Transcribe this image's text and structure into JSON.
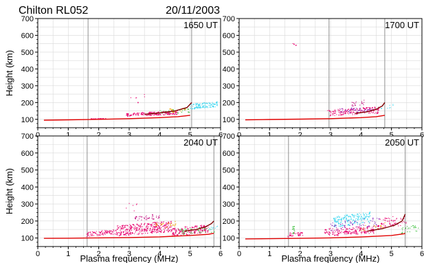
{
  "header": {
    "station": "Chilton RL052",
    "date": "20/11/2003"
  },
  "colors": {
    "trace": "#e8006e",
    "trace_alt": "#c01080",
    "echo_cyan": "#40d8f0",
    "echo_green": "#40c040",
    "echo_purple": "#9030c0",
    "echo_orange": "#f0a000",
    "profile_red": "#e00000",
    "profile_dark": "#800000",
    "guide_line": "#909090",
    "grid": "#d8d8d8"
  },
  "chart_data": [
    {
      "type": "scatter",
      "panel": "top-left",
      "time_label": "1650 UT",
      "xlabel": "",
      "ylabel": "Height (km)",
      "xlim": [
        0,
        6
      ],
      "ylim": [
        50,
        700
      ],
      "xticks": [
        0,
        1,
        2,
        3,
        4,
        5,
        6
      ],
      "yticks": [
        100,
        200,
        300,
        400,
        500,
        600,
        700
      ],
      "grid": true,
      "marker_lines_x": [
        1.65,
        5.05
      ],
      "echo_clusters": [
        {
          "color": "trace",
          "x_range": [
            1.75,
            2.25
          ],
          "h_range": [
            100,
            106
          ],
          "n": 30
        },
        {
          "color": "trace",
          "x_range": [
            2.9,
            3.4
          ],
          "h_range": [
            118,
            140
          ],
          "n": 40
        },
        {
          "color": "trace",
          "x_range": [
            3.4,
            4.6
          ],
          "h_range": [
            120,
            150
          ],
          "n": 140
        },
        {
          "color": "echo_green",
          "x_range": [
            4.0,
            5.0
          ],
          "h_range": [
            130,
            165
          ],
          "n": 30
        },
        {
          "color": "echo_orange",
          "x_range": [
            4.3,
            4.9
          ],
          "h_range": [
            140,
            170
          ],
          "n": 15
        },
        {
          "color": "echo_cyan",
          "x_range": [
            5.0,
            5.9
          ],
          "h_range": [
            160,
            205
          ],
          "n": 110
        },
        {
          "color": "trace",
          "x_range": [
            3.0,
            3.6
          ],
          "h_range": [
            180,
            260
          ],
          "n": 6
        }
      ],
      "profiles": [
        {
          "color": "profile_red",
          "points": [
            [
              0.2,
              95
            ],
            [
              1.0,
              97
            ],
            [
              2.0,
              100
            ],
            [
              3.0,
              104
            ],
            [
              4.0,
              110
            ],
            [
              4.6,
              116
            ],
            [
              5.0,
              124
            ]
          ]
        },
        {
          "color": "profile_dark",
          "points": [
            [
              3.5,
              130
            ],
            [
              4.0,
              138
            ],
            [
              4.5,
              150
            ],
            [
              4.9,
              170
            ],
            [
              5.05,
              200
            ]
          ]
        }
      ]
    },
    {
      "type": "scatter",
      "panel": "top-right",
      "time_label": "1700 UT",
      "xlabel": "",
      "ylabel": "",
      "xlim": [
        0,
        6
      ],
      "ylim": [
        50,
        700
      ],
      "xticks": [
        0,
        1,
        2,
        3,
        4,
        5,
        6
      ],
      "yticks": [
        100,
        200,
        300,
        400,
        500,
        600,
        700
      ],
      "grid": true,
      "marker_lines_x": [
        2.95,
        4.78
      ],
      "echo_clusters": [
        {
          "color": "trace",
          "x_range": [
            2.9,
            4.6
          ],
          "h_range": [
            118,
            175
          ],
          "n": 170
        },
        {
          "color": "echo_purple",
          "x_range": [
            3.3,
            4.4
          ],
          "h_range": [
            135,
            175
          ],
          "n": 40
        },
        {
          "color": "trace_alt",
          "x_range": [
            3.7,
            4.1
          ],
          "h_range": [
            175,
            215
          ],
          "n": 20
        },
        {
          "color": "echo_cyan",
          "x_range": [
            4.6,
            5.1
          ],
          "h_range": [
            160,
            190
          ],
          "n": 8
        },
        {
          "color": "trace",
          "x_range": [
            1.7,
            1.9
          ],
          "h_range": [
            530,
            560
          ],
          "n": 3
        }
      ],
      "profiles": [
        {
          "color": "profile_red",
          "points": [
            [
              0.2,
              97
            ],
            [
              1.0,
              99
            ],
            [
              2.0,
              101
            ],
            [
              3.0,
              104
            ],
            [
              4.0,
              110
            ],
            [
              4.5,
              116
            ],
            [
              4.78,
              124
            ]
          ]
        },
        {
          "color": "profile_dark",
          "points": [
            [
              3.8,
              135
            ],
            [
              4.2,
              145
            ],
            [
              4.5,
              160
            ],
            [
              4.7,
              180
            ],
            [
              4.78,
              200
            ]
          ]
        }
      ]
    },
    {
      "type": "scatter",
      "panel": "bottom-left",
      "time_label": "2040 UT",
      "xlabel": "Plasma frequency (MHz)",
      "ylabel": "Height (km)",
      "xlim": [
        0,
        6
      ],
      "ylim": [
        50,
        700
      ],
      "xticks": [
        0,
        1,
        2,
        3,
        4,
        5,
        6
      ],
      "yticks": [
        100,
        200,
        300,
        400,
        500,
        600,
        700
      ],
      "grid": true,
      "marker_lines_x": [
        1.62,
        5.78
      ],
      "echo_clusters": [
        {
          "color": "trace",
          "x_range": [
            1.6,
            2.6
          ],
          "h_range": [
            108,
            150
          ],
          "n": 90
        },
        {
          "color": "trace",
          "x_range": [
            2.6,
            4.4
          ],
          "h_range": [
            110,
            200
          ],
          "n": 320
        },
        {
          "color": "trace_alt",
          "x_range": [
            3.2,
            4.0
          ],
          "h_range": [
            200,
            240
          ],
          "n": 40
        },
        {
          "color": "trace",
          "x_range": [
            4.4,
            5.6
          ],
          "h_range": [
            110,
            180
          ],
          "n": 160
        },
        {
          "color": "echo_green",
          "x_range": [
            4.6,
            5.9
          ],
          "h_range": [
            120,
            170
          ],
          "n": 45
        },
        {
          "color": "echo_orange",
          "x_range": [
            3.8,
            4.6
          ],
          "h_range": [
            150,
            200
          ],
          "n": 20
        },
        {
          "color": "echo_cyan",
          "x_range": [
            5.6,
            5.9
          ],
          "h_range": [
            140,
            170
          ],
          "n": 10
        },
        {
          "color": "trace",
          "x_range": [
            2.8,
            3.4
          ],
          "h_range": [
            230,
            330
          ],
          "n": 6
        }
      ],
      "profiles": [
        {
          "color": "profile_red",
          "points": [
            [
              0.2,
              98
            ],
            [
              1.0,
              99
            ],
            [
              2.0,
              101
            ],
            [
              3.0,
              103
            ],
            [
              4.0,
              107
            ],
            [
              5.0,
              115
            ],
            [
              5.6,
              122
            ],
            [
              5.78,
              128
            ]
          ]
        },
        {
          "color": "profile_dark",
          "points": [
            [
              4.8,
              140
            ],
            [
              5.2,
              150
            ],
            [
              5.5,
              165
            ],
            [
              5.7,
              185
            ],
            [
              5.78,
              200
            ]
          ]
        }
      ]
    },
    {
      "type": "scatter",
      "panel": "bottom-right",
      "time_label": "2050 UT",
      "xlabel": "Plasma frequency (MHz)",
      "ylabel": "",
      "xlim": [
        0,
        6
      ],
      "ylim": [
        50,
        700
      ],
      "xticks": [
        0,
        1,
        2,
        3,
        4,
        5,
        6
      ],
      "yticks": [
        100,
        200,
        300,
        400,
        500,
        600,
        700
      ],
      "grid": true,
      "marker_lines_x": [
        1.62,
        5.45
      ],
      "echo_clusters": [
        {
          "color": "trace",
          "x_range": [
            1.6,
            2.1
          ],
          "h_range": [
            105,
            140
          ],
          "n": 30
        },
        {
          "color": "echo_green",
          "x_range": [
            1.75,
            1.85
          ],
          "h_range": [
            110,
            190
          ],
          "n": 12
        },
        {
          "color": "trace",
          "x_range": [
            2.8,
            4.6
          ],
          "h_range": [
            110,
            175
          ],
          "n": 180
        },
        {
          "color": "echo_cyan",
          "x_range": [
            3.1,
            4.3
          ],
          "h_range": [
            160,
            255
          ],
          "n": 170
        },
        {
          "color": "echo_purple",
          "x_range": [
            3.0,
            4.6
          ],
          "h_range": [
            140,
            220
          ],
          "n": 60
        },
        {
          "color": "trace",
          "x_range": [
            4.6,
            5.5
          ],
          "h_range": [
            150,
            240
          ],
          "n": 60
        },
        {
          "color": "echo_green",
          "x_range": [
            5.3,
            5.9
          ],
          "h_range": [
            120,
            180
          ],
          "n": 25
        },
        {
          "color": "echo_orange",
          "x_range": [
            4.0,
            4.8
          ],
          "h_range": [
            140,
            190
          ],
          "n": 15
        }
      ],
      "profiles": [
        {
          "color": "profile_red",
          "points": [
            [
              0.2,
              95
            ],
            [
              1.0,
              96
            ],
            [
              2.0,
              98
            ],
            [
              3.0,
              101
            ],
            [
              4.0,
              106
            ],
            [
              5.0,
              115
            ],
            [
              5.45,
              126
            ]
          ]
        },
        {
          "color": "profile_dark",
          "points": [
            [
              4.2,
              140
            ],
            [
              4.7,
              155
            ],
            [
              5.1,
              175
            ],
            [
              5.35,
              200
            ],
            [
              5.45,
              240
            ]
          ]
        }
      ]
    }
  ]
}
